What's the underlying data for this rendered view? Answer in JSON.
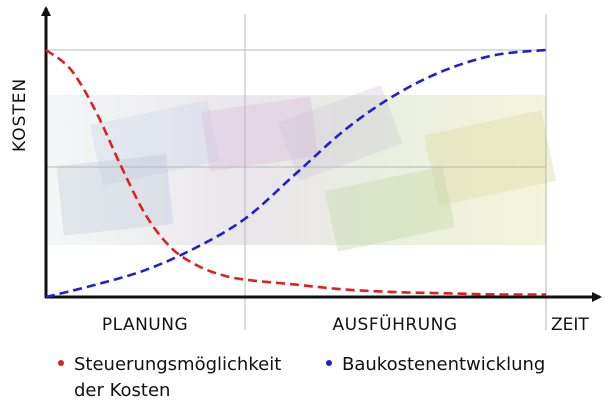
{
  "chart_data": {
    "type": "line",
    "ylabel": "KOSTEN",
    "xlabel": "ZEIT",
    "phases": [
      "PLANUNG",
      "AUSFÜHRUNG"
    ],
    "xlim": [
      0,
      100
    ],
    "ylim": [
      0,
      100
    ],
    "grid": true,
    "legend_position": "bottom",
    "series": [
      {
        "name": "Steuerungsmöglichkeit der Kosten",
        "color": "#e02020",
        "style": "dashed",
        "x": [
          0,
          5,
          10,
          15,
          20,
          25,
          30,
          35,
          40,
          50,
          60,
          70,
          80,
          90,
          100
        ],
        "y": [
          100,
          92,
          75,
          53,
          33,
          20,
          13,
          9,
          7,
          5,
          3,
          2,
          1.5,
          1,
          1
        ]
      },
      {
        "name": "Baukostenentwicklung",
        "color": "#2020d0",
        "style": "dashed",
        "x": [
          0,
          10,
          20,
          30,
          40,
          50,
          60,
          70,
          80,
          90,
          100
        ],
        "y": [
          0,
          5,
          11,
          20,
          32,
          50,
          68,
          82,
          92,
          98,
          100
        ]
      }
    ]
  }
}
